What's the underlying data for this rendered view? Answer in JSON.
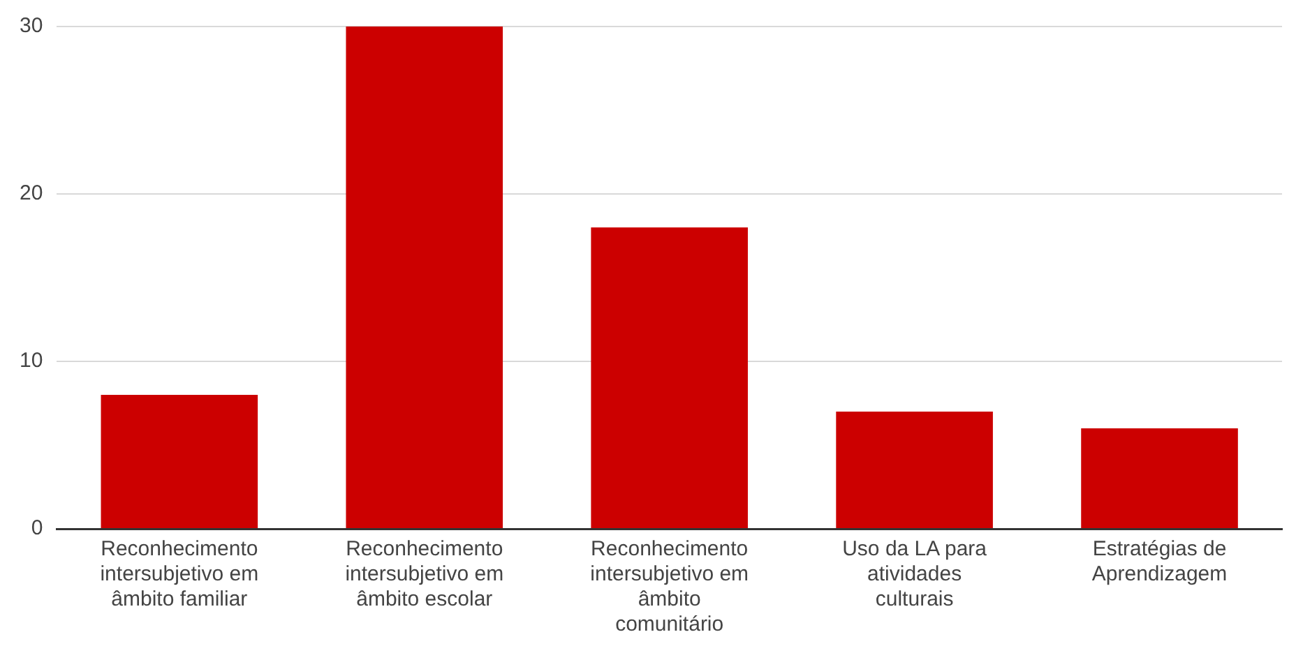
{
  "chart_data": {
    "type": "bar",
    "categories": [
      "Reconhecimento intersubjetivo em âmbito familiar",
      "Reconhecimento intersubjetivo em âmbito escolar",
      "Reconhecimento intersubjetivo em âmbito comunitário",
      "Uso da LA para atividades culturais",
      "Estratégias de Aprendizagem"
    ],
    "values": [
      8,
      30,
      18,
      7,
      6
    ],
    "color": "#cc0000",
    "ylim": [
      0,
      30
    ],
    "yticks": [
      0,
      10,
      20,
      30
    ],
    "grid": "y",
    "legend": false
  }
}
